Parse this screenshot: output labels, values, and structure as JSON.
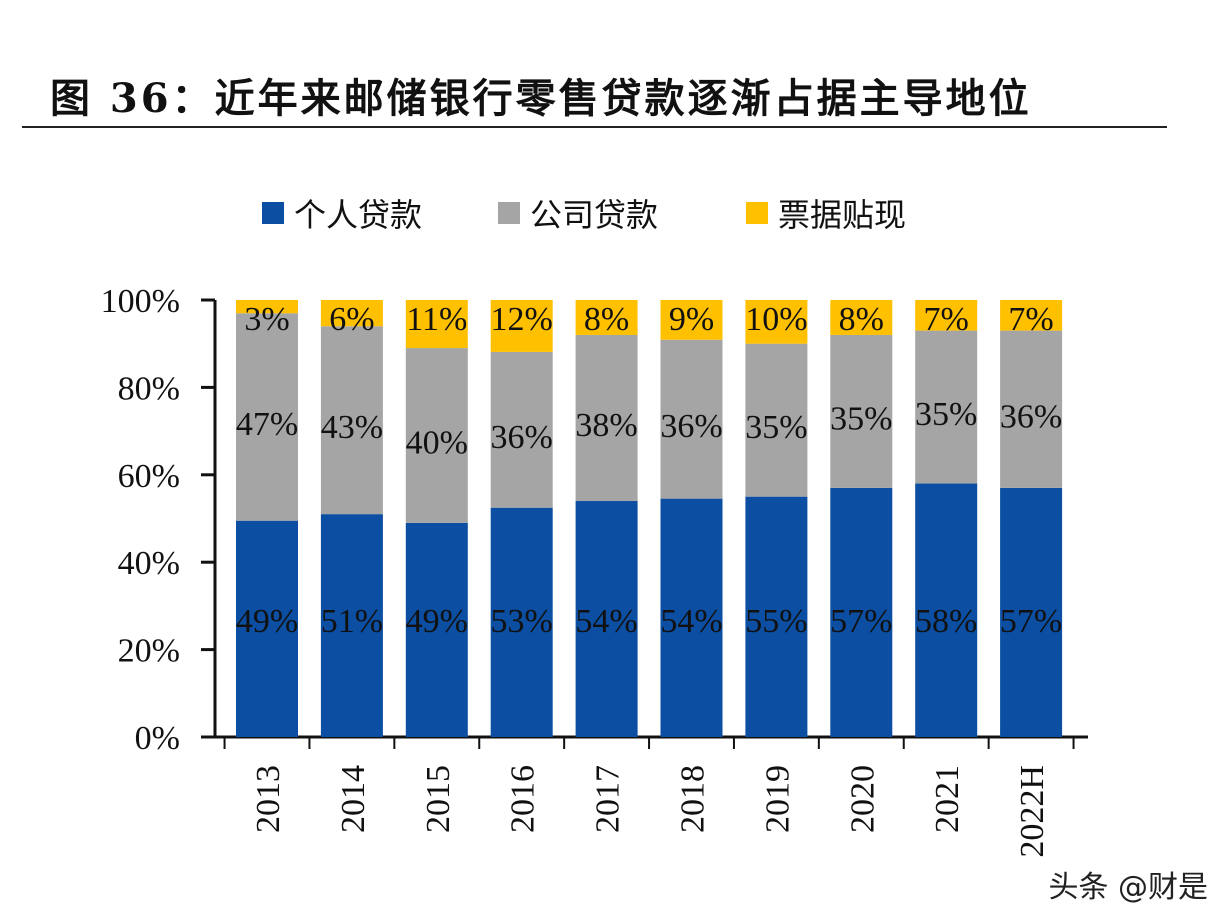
{
  "title": "图 36：近年来邮储银行零售贷款逐渐占据主导地位",
  "watermark": "头条 @财是",
  "chart_data": {
    "type": "bar",
    "stacked": true,
    "title": "图 36：近年来邮储银行零售贷款逐渐占据主导地位",
    "categories": [
      "2013",
      "2014",
      "2015",
      "2016",
      "2017",
      "2018",
      "2019",
      "2020",
      "2021",
      "2022H"
    ],
    "series": [
      {
        "name": "个人贷款",
        "color": "#0b4ea2",
        "values": [
          49,
          51,
          49,
          53,
          54,
          54,
          55,
          57,
          58,
          57
        ]
      },
      {
        "name": "公司贷款",
        "color": "#a5a5a5",
        "values": [
          47,
          43,
          40,
          36,
          38,
          36,
          35,
          35,
          35,
          36
        ]
      },
      {
        "name": "票据贴现",
        "color": "#ffc000",
        "values": [
          3,
          6,
          11,
          12,
          8,
          9,
          10,
          8,
          7,
          7
        ]
      }
    ],
    "yticks": [
      "0%",
      "20%",
      "40%",
      "60%",
      "80%",
      "100%"
    ],
    "ylim": [
      0,
      100
    ],
    "legend": "top",
    "grid": false,
    "xlabel": "",
    "ylabel": ""
  }
}
